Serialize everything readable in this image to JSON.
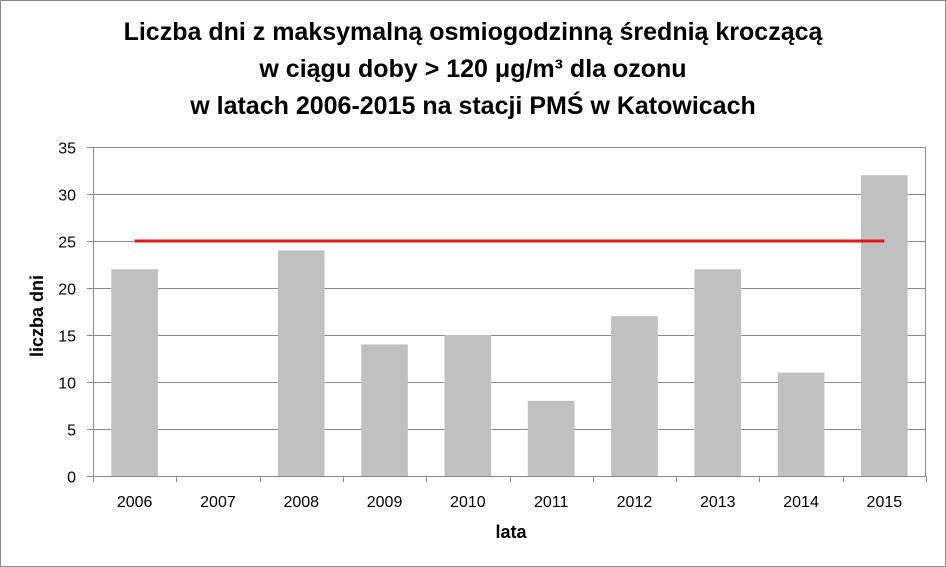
{
  "chart_data": {
    "type": "bar",
    "title_lines": [
      "Liczba dni z maksymalną osmiogodzinną średnią kroczącą",
      "w ciągu doby > 120 μg/m³ dla ozonu",
      "w latach 2006-2015 na stacji PMŚ w Katowicach"
    ],
    "xlabel": "lata",
    "ylabel": "liczba dni",
    "categories": [
      "2006",
      "2007",
      "2008",
      "2009",
      "2010",
      "2011",
      "2012",
      "2013",
      "2014",
      "2015"
    ],
    "values": [
      22,
      0,
      24,
      14,
      15,
      8,
      17,
      22,
      11,
      32
    ],
    "ylim": [
      0,
      35
    ],
    "yticks": [
      0,
      5,
      10,
      15,
      20,
      25,
      30,
      35
    ],
    "reference_line": {
      "value": 25,
      "color": "#e31a1c"
    },
    "bar_color": "#c0c0c0",
    "grid": true,
    "legend": "none"
  }
}
